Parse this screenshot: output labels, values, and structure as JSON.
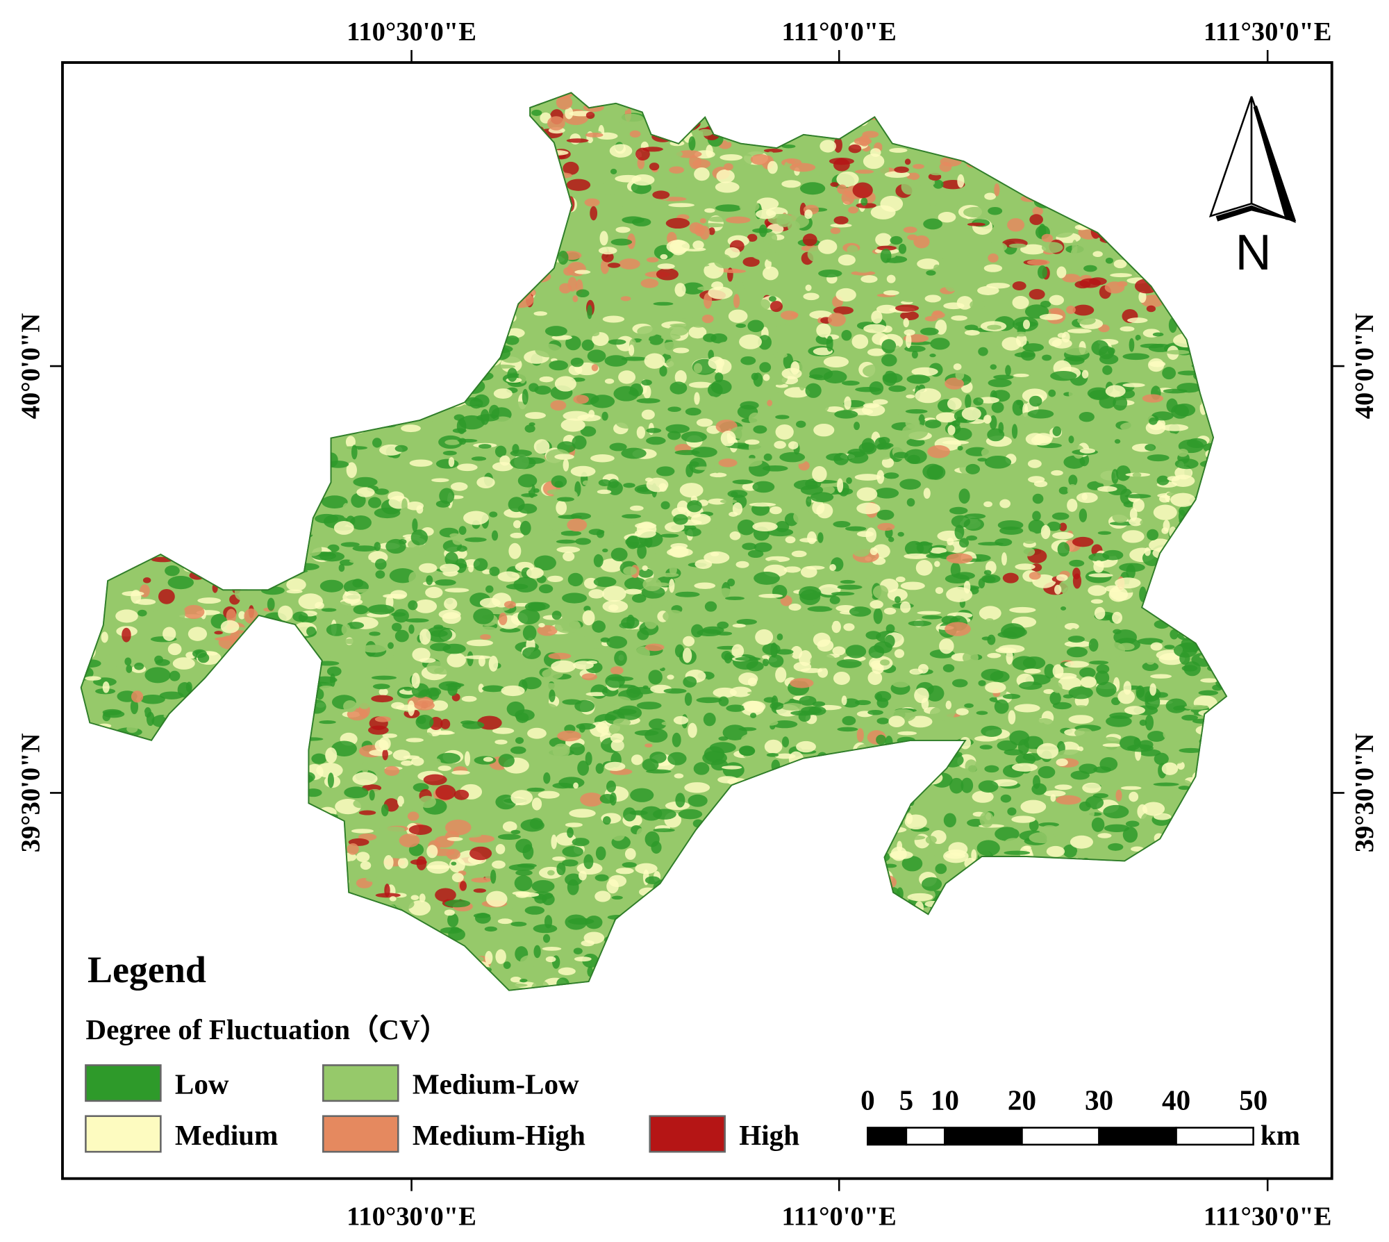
{
  "map": {
    "graticule": {
      "longitude_labels": [
        "110°30'0\"E",
        "111°0'0\"E",
        "111°30'0\"E"
      ],
      "latitude_labels": [
        "40°0'0\"N",
        "39°30'0\"N"
      ]
    },
    "north_arrow": "N",
    "legend": {
      "title": "Legend",
      "subtitle": "Degree of Fluctuation（CV）",
      "classes": [
        {
          "name": "Low",
          "color": "#2e9a2a"
        },
        {
          "name": "Medium-Low",
          "color": "#96c96a"
        },
        {
          "name": "Medium",
          "color": "#fdfbc0"
        },
        {
          "name": "Medium-High",
          "color": "#e5895f"
        },
        {
          "name": "High",
          "color": "#b51515"
        }
      ]
    },
    "scale_bar": {
      "ticks": [
        0,
        5,
        10,
        20,
        30,
        40,
        50
      ],
      "unit": "km"
    }
  }
}
